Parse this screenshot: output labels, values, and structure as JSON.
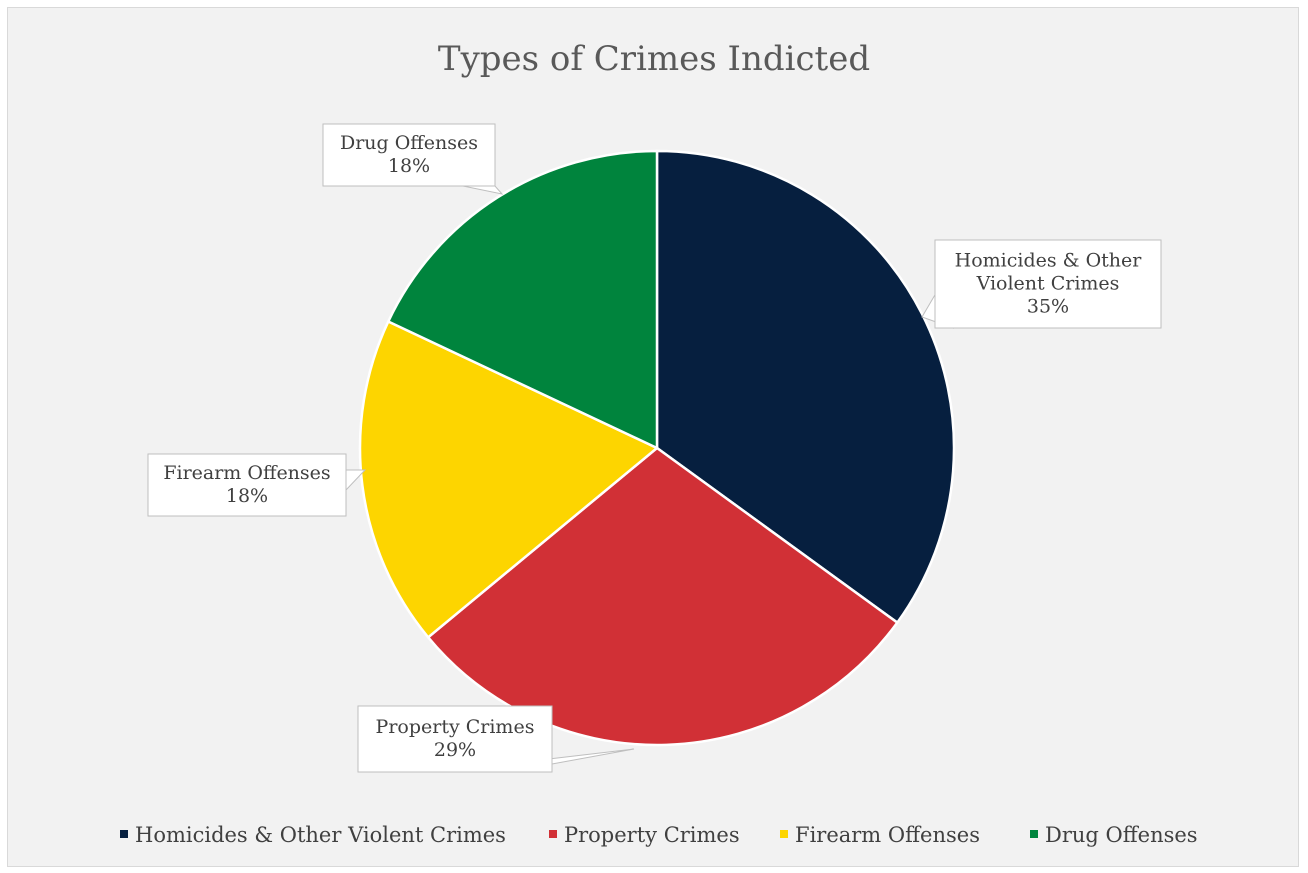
{
  "chart_data": {
    "type": "pie",
    "title": "Types of Crimes Indicted",
    "categories": [
      "Homicides & Other Violent Crimes",
      "Property Crimes",
      "Firearm Offenses",
      "Drug Offenses"
    ],
    "values": [
      35,
      29,
      18,
      18
    ],
    "value_labels": [
      "35%",
      "29%",
      "18%",
      "18%"
    ],
    "data_labels": [
      [
        "Homicides & Other",
        "Violent Crimes",
        "35%"
      ],
      [
        "Property Crimes",
        "29%"
      ],
      [
        "Firearm Offenses",
        "18%"
      ],
      [
        "Drug Offenses",
        "18%"
      ]
    ],
    "colors": [
      "#061f3f",
      "#d13036",
      "#fdd500",
      "#00843d"
    ],
    "legend_position": "bottom",
    "start_angle": "12 o'clock",
    "direction": "clockwise"
  }
}
